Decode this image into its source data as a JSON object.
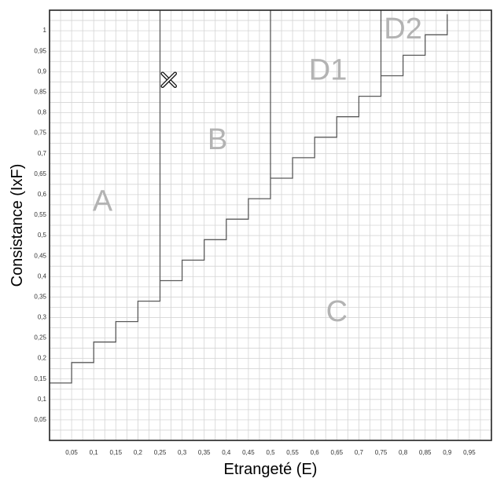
{
  "chart_data": {
    "type": "line",
    "xlabel": "Etrangeté (E)",
    "ylabel": "Consistance (IxF)",
    "xlim": [
      0,
      1
    ],
    "ylim": [
      0,
      1.05
    ],
    "x_ticks": [
      0.05,
      0.1,
      0.15,
      0.2,
      0.25,
      0.3,
      0.35,
      0.4,
      0.45,
      0.5,
      0.55,
      0.6,
      0.65,
      0.7,
      0.75,
      0.8,
      0.85,
      0.9,
      0.95
    ],
    "x_tick_labels": [
      "0,05",
      "0,1",
      "0,15",
      "0,2",
      "0,25",
      "0,3",
      "0,35",
      "0,4",
      "0,45",
      "0,5",
      "0,55",
      "0,6",
      "0,65",
      "0,7",
      "0,75",
      "0,8",
      "0,85",
      "0,9",
      "0,95"
    ],
    "y_ticks": [
      0.05,
      0.1,
      0.15,
      0.2,
      0.25,
      0.3,
      0.35,
      0.4,
      0.45,
      0.5,
      0.55,
      0.6,
      0.65,
      0.7,
      0.75,
      0.8,
      0.85,
      0.9,
      0.95,
      1
    ],
    "y_tick_labels": [
      "0,05",
      "0,1",
      "0,15",
      "0,2",
      "0,25",
      "0,3",
      "0,35",
      "0,4",
      "0,45",
      "0,5",
      "0,55",
      "0,6",
      "0,65",
      "0,7",
      "0,75",
      "0,8",
      "0,85",
      "0,9",
      "0,95",
      "1"
    ],
    "grid": true,
    "boundary": [
      [
        0,
        0.14
      ],
      [
        0.05,
        0.14
      ],
      [
        0.05,
        0.19
      ],
      [
        0.1,
        0.19
      ],
      [
        0.1,
        0.24
      ],
      [
        0.15,
        0.24
      ],
      [
        0.15,
        0.29
      ],
      [
        0.2,
        0.29
      ],
      [
        0.2,
        0.34
      ],
      [
        0.25,
        0.34
      ],
      [
        0.25,
        0.39
      ],
      [
        0.3,
        0.39
      ],
      [
        0.3,
        0.44
      ],
      [
        0.35,
        0.44
      ],
      [
        0.35,
        0.49
      ],
      [
        0.4,
        0.49
      ],
      [
        0.4,
        0.54
      ],
      [
        0.45,
        0.54
      ],
      [
        0.45,
        0.59
      ],
      [
        0.5,
        0.59
      ],
      [
        0.5,
        0.64
      ],
      [
        0.55,
        0.64
      ],
      [
        0.55,
        0.69
      ],
      [
        0.6,
        0.69
      ],
      [
        0.6,
        0.74
      ],
      [
        0.65,
        0.74
      ],
      [
        0.65,
        0.79
      ],
      [
        0.7,
        0.79
      ],
      [
        0.7,
        0.84
      ],
      [
        0.75,
        0.84
      ],
      [
        0.75,
        0.89
      ],
      [
        0.8,
        0.89
      ],
      [
        0.8,
        0.94
      ],
      [
        0.85,
        0.94
      ],
      [
        0.85,
        0.99
      ],
      [
        0.9,
        0.99
      ],
      [
        0.9,
        1.04
      ]
    ],
    "dividers": [
      0.25,
      0.5,
      0.75
    ],
    "regions": [
      {
        "label": "A",
        "x": 0.12,
        "y": 0.58
      },
      {
        "label": "B",
        "x": 0.38,
        "y": 0.73
      },
      {
        "label": "C",
        "x": 0.65,
        "y": 0.31
      },
      {
        "label": "D1",
        "x": 0.63,
        "y": 0.9
      },
      {
        "label": "D2",
        "x": 0.8,
        "y": 1.0
      }
    ],
    "markers": [
      {
        "shape": "x",
        "x": 0.27,
        "y": 0.88
      }
    ],
    "colors": {
      "grid": "#d4d4d4",
      "boundary": "#5a5a5a",
      "frame": "#222222",
      "region_label": "#b3b3b3",
      "marker": "#111111"
    }
  }
}
